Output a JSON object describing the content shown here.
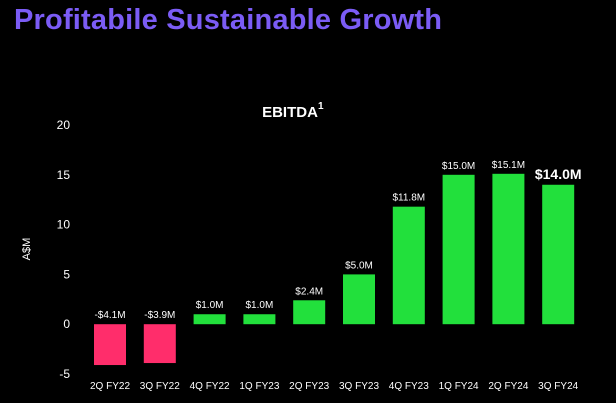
{
  "page": {
    "title": "Profitabile Sustainable Growth"
  },
  "chart_data": {
    "type": "bar",
    "title": "EBITDA",
    "title_superscript": "1",
    "ylabel": "A$M",
    "xlabel": "",
    "ylim": [
      -5,
      20
    ],
    "yticks": [
      -5,
      0,
      5,
      10,
      15,
      20
    ],
    "categories": [
      "2Q FY22",
      "3Q FY22",
      "4Q FY22",
      "1Q FY23",
      "2Q FY23",
      "3Q FY23",
      "4Q FY23",
      "1Q FY24",
      "2Q FY24",
      "3Q FY24"
    ],
    "values": [
      -4.1,
      -3.9,
      1.0,
      1.0,
      2.4,
      5.0,
      11.8,
      15.0,
      15.1,
      14.0
    ],
    "data_labels": [
      "-$4.1M",
      "-$3.9M",
      "$1.0M",
      "$1.0M",
      "$2.4M",
      "$5.0M",
      "$11.8M",
      "$15.0M",
      "$15.1M",
      "$14.0M"
    ],
    "highlight_index": 9,
    "grid": false,
    "legend": "none",
    "colors": {
      "positive": "#22e03c",
      "negative": "#ff2d6b",
      "text": "#ffffff",
      "title": "#7b5cf5"
    }
  }
}
